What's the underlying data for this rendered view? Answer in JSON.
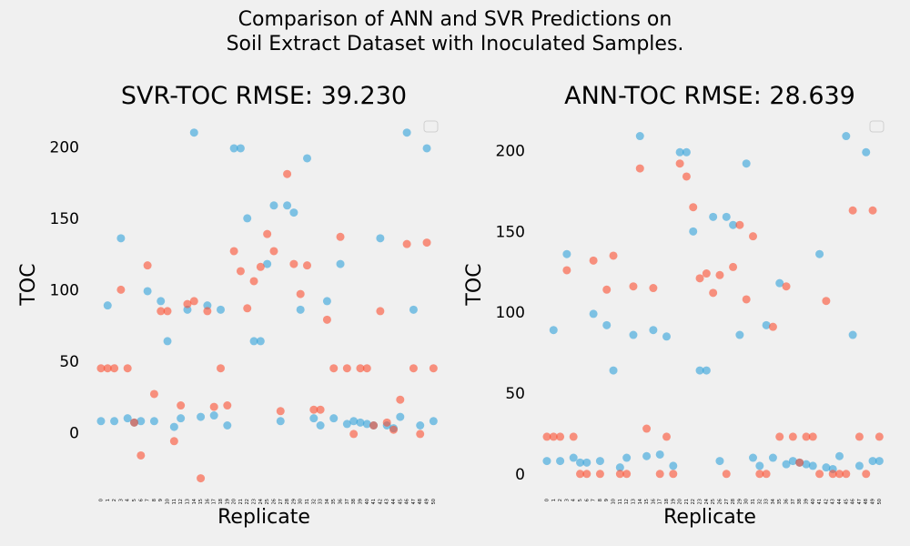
{
  "figure": {
    "suptitle_line1": "Comparison of ANN and SVR Predictions on",
    "suptitle_line2": "Soil Extract Dataset with Inoculated Samples."
  },
  "colors": {
    "actual": "#30a2da",
    "predicted": "#fc4f30",
    "background": "#f0f0f0",
    "grid": "#cbcbcb"
  },
  "chart_data": [
    {
      "type": "scatter",
      "title": "SVR-TOC RMSE: 39.230",
      "xlabel": "Replicate",
      "ylabel": "TOC",
      "ylim": [
        -38,
        220
      ],
      "yticks": [
        0,
        50,
        100,
        150,
        200
      ],
      "xticks": [
        0,
        1,
        2,
        3,
        4,
        5,
        6,
        7,
        8,
        9,
        10,
        11,
        12,
        13,
        14,
        15,
        16,
        17,
        18,
        19,
        20,
        21,
        22,
        23,
        24,
        25,
        26,
        27,
        28,
        29,
        30,
        31,
        32,
        33,
        34,
        35,
        36,
        37,
        38,
        39,
        40,
        41,
        42,
        43,
        44,
        45,
        46,
        47,
        48,
        49,
        50
      ],
      "grid": false,
      "legend": "top-right, empty",
      "series": [
        {
          "x": [
            0,
            1,
            2,
            3,
            4,
            5,
            6,
            7,
            8,
            9,
            10,
            11,
            12,
            13,
            14,
            15,
            16,
            17,
            18,
            19,
            20,
            21,
            22,
            23,
            24,
            25,
            26,
            27,
            28,
            29,
            30,
            31,
            32,
            33,
            34,
            35,
            36,
            37,
            38,
            39,
            40,
            41,
            42,
            43,
            44,
            45,
            46,
            47,
            48,
            49,
            50
          ],
          "y": [
            8,
            89,
            8,
            136,
            10,
            7,
            8,
            99,
            8,
            92,
            64,
            4,
            10,
            86,
            210,
            11,
            89,
            12,
            86,
            5,
            199,
            199,
            150,
            64,
            64,
            118,
            159,
            8,
            159,
            154,
            86,
            192,
            10,
            5,
            92,
            10,
            118,
            6,
            8,
            7,
            6,
            5,
            136,
            5,
            3,
            11,
            210,
            86,
            5,
            199,
            8
          ]
        },
        {
          "x": [
            0,
            1,
            2,
            3,
            4,
            5,
            6,
            7,
            8,
            9,
            10,
            11,
            12,
            13,
            14,
            15,
            16,
            17,
            18,
            19,
            20,
            21,
            22,
            23,
            24,
            25,
            26,
            27,
            28,
            29,
            30,
            31,
            32,
            33,
            34,
            35,
            36,
            37,
            38,
            39,
            40,
            41,
            42,
            43,
            44,
            45,
            46,
            47,
            48,
            49,
            50
          ],
          "y": [
            45,
            45,
            45,
            100,
            45,
            7,
            -16,
            117,
            27,
            85,
            85,
            -6,
            19,
            90,
            92,
            -32,
            85,
            18,
            45,
            19,
            127,
            113,
            87,
            106,
            116,
            139,
            127,
            15,
            181,
            118,
            97,
            117,
            16,
            16,
            79,
            45,
            137,
            45,
            -1,
            45,
            45,
            5,
            85,
            7,
            2,
            23,
            132,
            45,
            -1,
            133,
            45
          ]
        }
      ]
    },
    {
      "type": "scatter",
      "title": "ANN-TOC RMSE: 28.639",
      "xlabel": "Replicate",
      "ylabel": "TOC",
      "ylim": [
        -8,
        220
      ],
      "yticks": [
        0,
        50,
        100,
        150,
        200
      ],
      "xticks": [
        0,
        1,
        2,
        3,
        4,
        5,
        6,
        7,
        8,
        9,
        10,
        11,
        12,
        13,
        14,
        15,
        16,
        17,
        18,
        19,
        20,
        21,
        22,
        23,
        24,
        25,
        26,
        27,
        28,
        29,
        30,
        31,
        32,
        33,
        34,
        35,
        36,
        37,
        38,
        39,
        40,
        41,
        42,
        43,
        44,
        45,
        46,
        47,
        48,
        49,
        50
      ],
      "grid": false,
      "legend": "top-right, empty",
      "series": [
        {
          "x": [
            0,
            1,
            2,
            3,
            4,
            5,
            6,
            7,
            8,
            9,
            10,
            11,
            12,
            13,
            14,
            15,
            16,
            17,
            18,
            19,
            20,
            21,
            22,
            23,
            24,
            25,
            26,
            27,
            28,
            29,
            30,
            31,
            32,
            33,
            34,
            35,
            36,
            37,
            38,
            39,
            40,
            41,
            42,
            43,
            44,
            45,
            46,
            47,
            48,
            49,
            50
          ],
          "y": [
            8,
            89,
            8,
            136,
            10,
            7,
            7,
            99,
            8,
            92,
            64,
            4,
            10,
            86,
            209,
            11,
            89,
            12,
            85,
            5,
            199,
            199,
            150,
            64,
            64,
            159,
            8,
            159,
            154,
            86,
            192,
            10,
            5,
            92,
            10,
            118,
            6,
            8,
            7,
            6,
            5,
            136,
            4,
            3,
            11,
            209,
            86,
            5,
            199,
            8,
            8
          ]
        },
        {
          "x": [
            0,
            1,
            2,
            3,
            4,
            5,
            6,
            7,
            8,
            9,
            10,
            11,
            12,
            13,
            14,
            15,
            16,
            17,
            18,
            19,
            20,
            21,
            22,
            23,
            24,
            25,
            26,
            27,
            28,
            29,
            30,
            31,
            32,
            33,
            34,
            35,
            36,
            37,
            38,
            39,
            40,
            41,
            42,
            43,
            44,
            45,
            46,
            47,
            48,
            49,
            50
          ],
          "y": [
            23,
            23,
            23,
            126,
            23,
            0,
            0,
            132,
            0,
            114,
            135,
            0,
            0,
            116,
            189,
            28,
            115,
            0,
            23,
            0,
            192,
            184,
            165,
            121,
            124,
            112,
            123,
            0,
            128,
            154,
            108,
            147,
            0,
            0,
            91,
            23,
            116,
            23,
            7,
            23,
            23,
            0,
            107,
            0,
            0,
            0,
            163,
            23,
            0,
            163,
            23
          ]
        }
      ]
    }
  ]
}
